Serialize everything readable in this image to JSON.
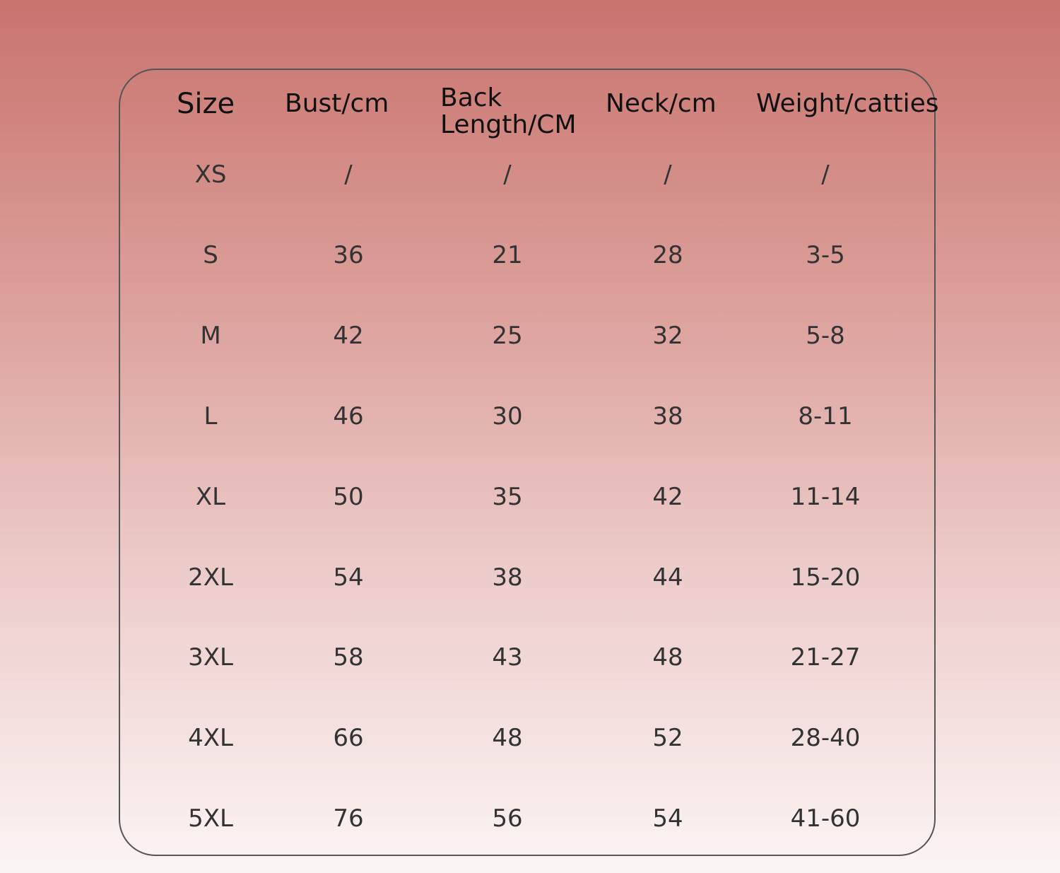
{
  "table": {
    "header": [
      "Size",
      "Bust/cm",
      "Back Length/CM",
      "Neck/cm",
      "Weight/catties"
    ],
    "rows": [
      [
        "XS",
        "/",
        "/",
        "/",
        "/"
      ],
      [
        "S",
        "36",
        "21",
        "28",
        "3-5"
      ],
      [
        "M",
        "42",
        "25",
        "32",
        "5-8"
      ],
      [
        "L",
        "46",
        "30",
        "38",
        "8-11"
      ],
      [
        "XL",
        "50",
        "35",
        "42",
        "11-14"
      ],
      [
        "2XL",
        "54",
        "38",
        "44",
        "15-20"
      ],
      [
        "3XL",
        "58",
        "43",
        "48",
        "21-27"
      ],
      [
        "4XL",
        "66",
        "48",
        "52",
        "28-40"
      ],
      [
        "5XL",
        "76",
        "56",
        "54",
        "41-60"
      ]
    ]
  }
}
